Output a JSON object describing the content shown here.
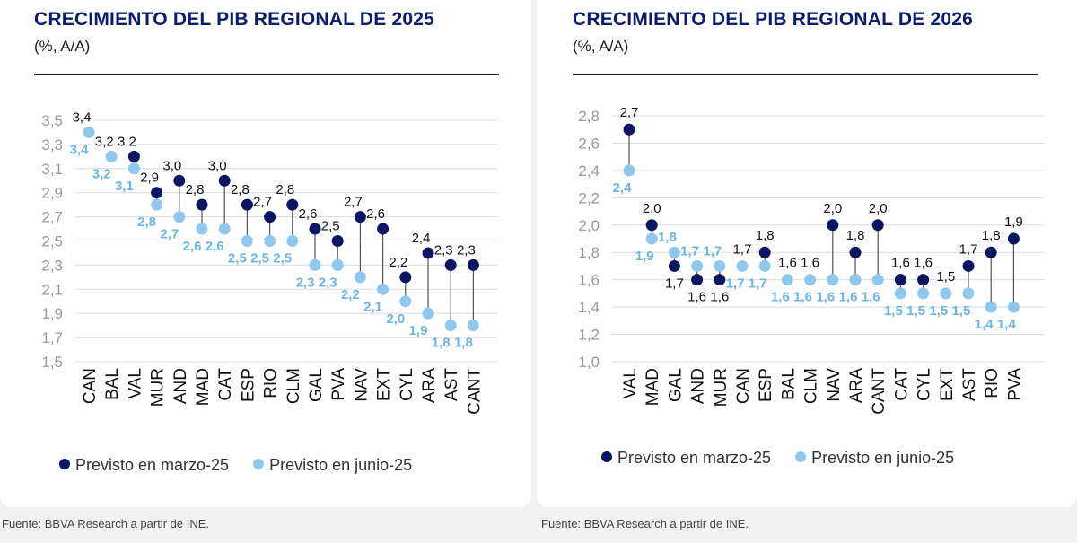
{
  "colors": {
    "march": "#0a1564",
    "june": "#8ec8ee",
    "title": "#0a1d6b",
    "grid": "#dcdcdc",
    "june_label": "#6bb5e6"
  },
  "legend": {
    "march": "Previsto en marzo-25",
    "june": "Previsto en junio-25"
  },
  "source": "Fuente: BBVA Research a partir de INE.",
  "chart_data": [
    {
      "type": "dumbbell",
      "title": "CRECIMIENTO DEL PIB REGIONAL DE 2025",
      "subtitle": "(%, A/A)",
      "ylim": [
        1.5,
        3.5
      ],
      "yticks": [
        "1,5",
        "1,7",
        "1,9",
        "2,1",
        "2,3",
        "2,5",
        "2,7",
        "2,9",
        "3,1",
        "3,3",
        "3,5"
      ],
      "categories": [
        "CAN",
        "BAL",
        "VAL",
        "MUR",
        "AND",
        "MAD",
        "CAT",
        "ESP",
        "RIO",
        "CLM",
        "GAL",
        "PVA",
        "NAV",
        "EXT",
        "CYL",
        "ARA",
        "AST",
        "CANT"
      ],
      "series": [
        {
          "name": "Previsto en marzo-25",
          "values": [
            null,
            null,
            3.2,
            2.9,
            3.0,
            2.8,
            3.0,
            2.8,
            2.7,
            2.8,
            2.6,
            2.5,
            2.7,
            2.6,
            2.2,
            2.4,
            2.3,
            2.3
          ],
          "labels": [
            "3,4",
            "3,2",
            "3,2",
            "2,9",
            "3,0",
            "2,8",
            "3,0",
            "2,8",
            "2,7",
            "2,8",
            "2,6",
            "2,5",
            "2,7",
            "2,6",
            "2,2",
            "2,4",
            "2,3",
            "2,3"
          ]
        },
        {
          "name": "Previsto en junio-25",
          "values": [
            3.4,
            3.2,
            3.1,
            2.8,
            2.7,
            2.6,
            2.6,
            2.5,
            2.5,
            2.5,
            2.3,
            2.3,
            2.2,
            2.1,
            2.0,
            1.9,
            1.8,
            1.8
          ],
          "labels": [
            "3,4",
            "3,2",
            "3,1",
            "2,8",
            "2,7",
            "2,6",
            "2,6",
            "2,5",
            "2,5",
            "2,5",
            "2,3",
            "2,3",
            "2,2",
            "2,1",
            "2,0",
            "1,9",
            "1,8",
            "1,8"
          ]
        }
      ]
    },
    {
      "type": "dumbbell",
      "title": "CRECIMIENTO DEL PIB REGIONAL DE 2026",
      "subtitle": "(%, A/A)",
      "ylim": [
        1.0,
        2.8
      ],
      "yticks": [
        "1,0",
        "1,2",
        "1,4",
        "1,6",
        "1,8",
        "2,0",
        "2,2",
        "2,4",
        "2,6",
        "2,8"
      ],
      "categories": [
        "VAL",
        "MAD",
        "GAL",
        "AND",
        "MUR",
        "CAN",
        "ESP",
        "BAL",
        "CLM",
        "NAV",
        "ARA",
        "CANT",
        "CAT",
        "CYL",
        "EXT",
        "AST",
        "RIO",
        "PVA"
      ],
      "series": [
        {
          "name": "Previsto en marzo-25",
          "values": [
            2.7,
            2.0,
            1.7,
            1.6,
            1.6,
            null,
            1.8,
            null,
            null,
            2.0,
            1.8,
            2.0,
            1.6,
            1.6,
            null,
            1.7,
            1.8,
            1.9
          ],
          "labels": [
            "2,7",
            "2,0",
            "1,7",
            "1,6",
            "1,6",
            "1,7",
            "1,8",
            "1,6",
            "1,6",
            "2,0",
            "1,8",
            "2,0",
            "1,6",
            "1,6",
            "1,5",
            "1,7",
            "1,8",
            "1,9"
          ]
        },
        {
          "name": "Previsto en junio-25",
          "values": [
            2.4,
            1.9,
            1.8,
            1.7,
            1.7,
            1.7,
            1.7,
            1.6,
            1.6,
            1.6,
            1.6,
            1.6,
            1.5,
            1.5,
            1.5,
            1.5,
            1.4,
            1.4
          ],
          "labels": [
            "2,4",
            "1,9",
            "1,8",
            "1,7",
            "1,7",
            "1,7",
            "1,7",
            "1,6",
            "1,6",
            "1,6",
            "1,6",
            "1,6",
            "1,5",
            "1,5",
            "1,5",
            "1,5",
            "1,4",
            "1,4"
          ]
        }
      ]
    }
  ]
}
